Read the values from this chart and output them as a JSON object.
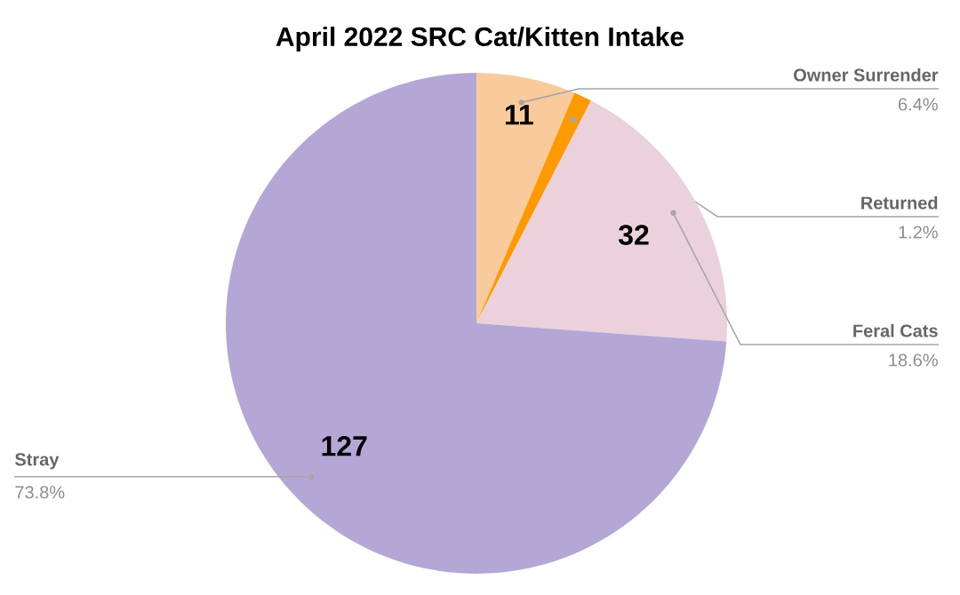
{
  "chart_data": {
    "type": "pie",
    "title": "April 2022 SRC Cat/Kitten Intake",
    "categories": [
      "Owner Surrender",
      "Returned",
      "Feral Cats",
      "Stray"
    ],
    "values": [
      11,
      2,
      32,
      127
    ],
    "colors": [
      "#f9cb9c",
      "#ff9900",
      "#ead1dc",
      "#b4a7d6"
    ],
    "value_labels": [
      "11",
      null,
      "32",
      "127"
    ],
    "annotations": [
      "6.4%",
      "1.2%",
      "18.6%",
      "73.8%"
    ]
  }
}
